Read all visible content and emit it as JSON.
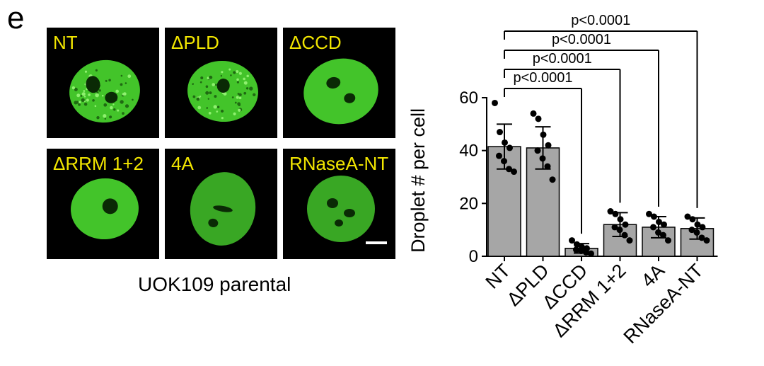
{
  "figure": {
    "panel_letter": "e",
    "caption": "UOK109 parental",
    "image_labels": [
      "NT",
      "ΔPLD",
      "ΔCCD",
      "ΔRRM 1+2",
      "4A",
      "RNaseA-NT"
    ],
    "colors": {
      "nucleus": "#43c42a",
      "label": "#f2e600",
      "bar": "#a6a6a6"
    }
  },
  "chart_data": {
    "type": "bar",
    "categories": [
      "NT",
      "ΔPLD",
      "ΔCCD",
      "ΔRRM 1+2",
      "4A",
      "RNaseA-NT"
    ],
    "values": [
      41.5,
      41,
      3,
      12,
      11,
      10.5
    ],
    "error": [
      8.5,
      8,
      1.8,
      4.5,
      4,
      4
    ],
    "points": [
      [
        58,
        47,
        43,
        41,
        38,
        36,
        33,
        32
      ],
      [
        54,
        52,
        46,
        42,
        40,
        37,
        34,
        29
      ],
      [
        6,
        4.5,
        3.5,
        3,
        2.5,
        2,
        1.5,
        1
      ],
      [
        17,
        16,
        14,
        12,
        11,
        10,
        8,
        6
      ],
      [
        16,
        15,
        13,
        12,
        11,
        9,
        8,
        6
      ],
      [
        15,
        14,
        12,
        11,
        10,
        9,
        7,
        6
      ]
    ],
    "ylabel": "Droplet # per cell",
    "ylim": [
      0,
      60
    ],
    "yticks": [
      0,
      20,
      40,
      60
    ],
    "comparisons": [
      {
        "from": "NT",
        "to": "ΔCCD",
        "label": "p<0.0001"
      },
      {
        "from": "NT",
        "to": "ΔRRM 1+2",
        "label": "p<0.0001"
      },
      {
        "from": "NT",
        "to": "4A",
        "label": "p<0.0001"
      },
      {
        "from": "NT",
        "to": "RNaseA-NT",
        "label": "p<0.0001"
      }
    ]
  }
}
